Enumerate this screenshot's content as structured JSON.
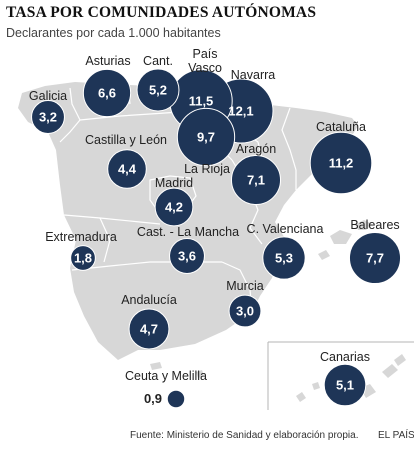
{
  "header": {
    "title": "TASA POR COMUNIDADES AUTÓNOMAS",
    "subtitle": "Declarantes por cada 1.000 habitantes"
  },
  "colors": {
    "bubble": "#1e3557",
    "land": "#d7d7d7",
    "border": "#ffffff"
  },
  "regions": [
    {
      "id": "galicia",
      "label": "Galicia",
      "value": "3,2"
    },
    {
      "id": "asturias",
      "label": "Asturias",
      "value": "6,6"
    },
    {
      "id": "cantabria",
      "label": "Cant.",
      "value": "5,2"
    },
    {
      "id": "pais-vasco",
      "label_lines": [
        "País",
        "Vasco"
      ],
      "value": "11,5"
    },
    {
      "id": "navarra",
      "label": "Navarra",
      "value": "12,1"
    },
    {
      "id": "la-rioja",
      "label": "La Rioja",
      "value": "9,7"
    },
    {
      "id": "castilla-y-leon",
      "label": "Castilla y León",
      "value": "4,4"
    },
    {
      "id": "aragon",
      "label": "Aragón",
      "value": "7,1"
    },
    {
      "id": "cataluna",
      "label": "Cataluña",
      "value": "11,2"
    },
    {
      "id": "madrid",
      "label": "Madrid",
      "value": "4,2"
    },
    {
      "id": "extremadura",
      "label": "Extremadura",
      "value": "1,8"
    },
    {
      "id": "castilla-la-mancha",
      "label": "Cast. - La Mancha",
      "value": "3,6"
    },
    {
      "id": "c-valenciana",
      "label": "C. Valenciana",
      "value": "5,3"
    },
    {
      "id": "baleares",
      "label": "Baleares",
      "value": "7,7"
    },
    {
      "id": "andalucia",
      "label": "Andalucía",
      "value": "4,7"
    },
    {
      "id": "murcia",
      "label": "Murcia",
      "value": "3,0"
    },
    {
      "id": "canarias",
      "label": "Canarias",
      "value": "5,1"
    },
    {
      "id": "ceuta-y-melilla",
      "label": "Ceuta y Melilla",
      "value": "0,9"
    }
  ],
  "footer": {
    "source": "Fuente: Ministerio de Sanidad y elaboración propia.",
    "brand": "EL PAÍS"
  }
}
